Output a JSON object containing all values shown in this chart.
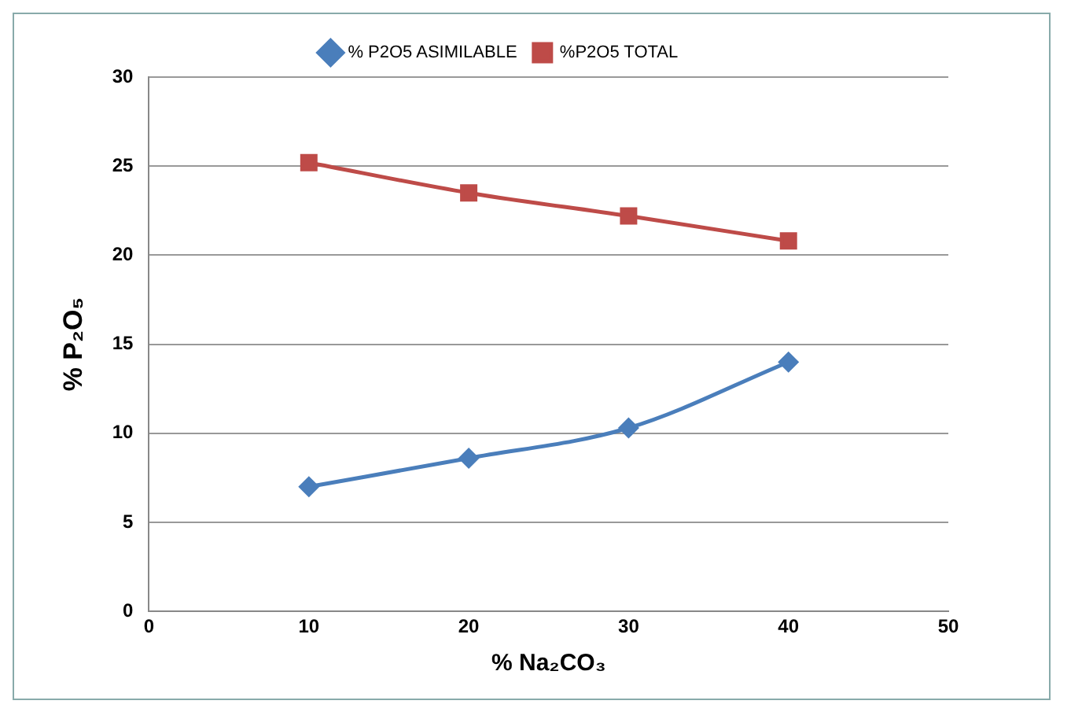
{
  "chart_data": {
    "type": "line",
    "xlabel": "% Na₂CO₃",
    "ylabel": "% P₂O₅",
    "x": [
      10,
      20,
      30,
      40
    ],
    "series": [
      {
        "name": "% P2O5 ASIMILABLE",
        "color": "#4a7ebb",
        "marker": "diamond",
        "values": [
          7.0,
          8.6,
          10.3,
          14.0
        ]
      },
      {
        "name": "%P2O5 TOTAL",
        "color": "#be4b48",
        "marker": "square",
        "values": [
          25.2,
          23.5,
          22.2,
          20.8
        ]
      }
    ],
    "xlim": [
      0,
      50
    ],
    "xticks": [
      0,
      10,
      20,
      30,
      40,
      50
    ],
    "ylim": [
      0,
      30
    ],
    "yticks": [
      0,
      5,
      10,
      15,
      20,
      25,
      30
    ],
    "grid": "y",
    "legend": "top"
  }
}
